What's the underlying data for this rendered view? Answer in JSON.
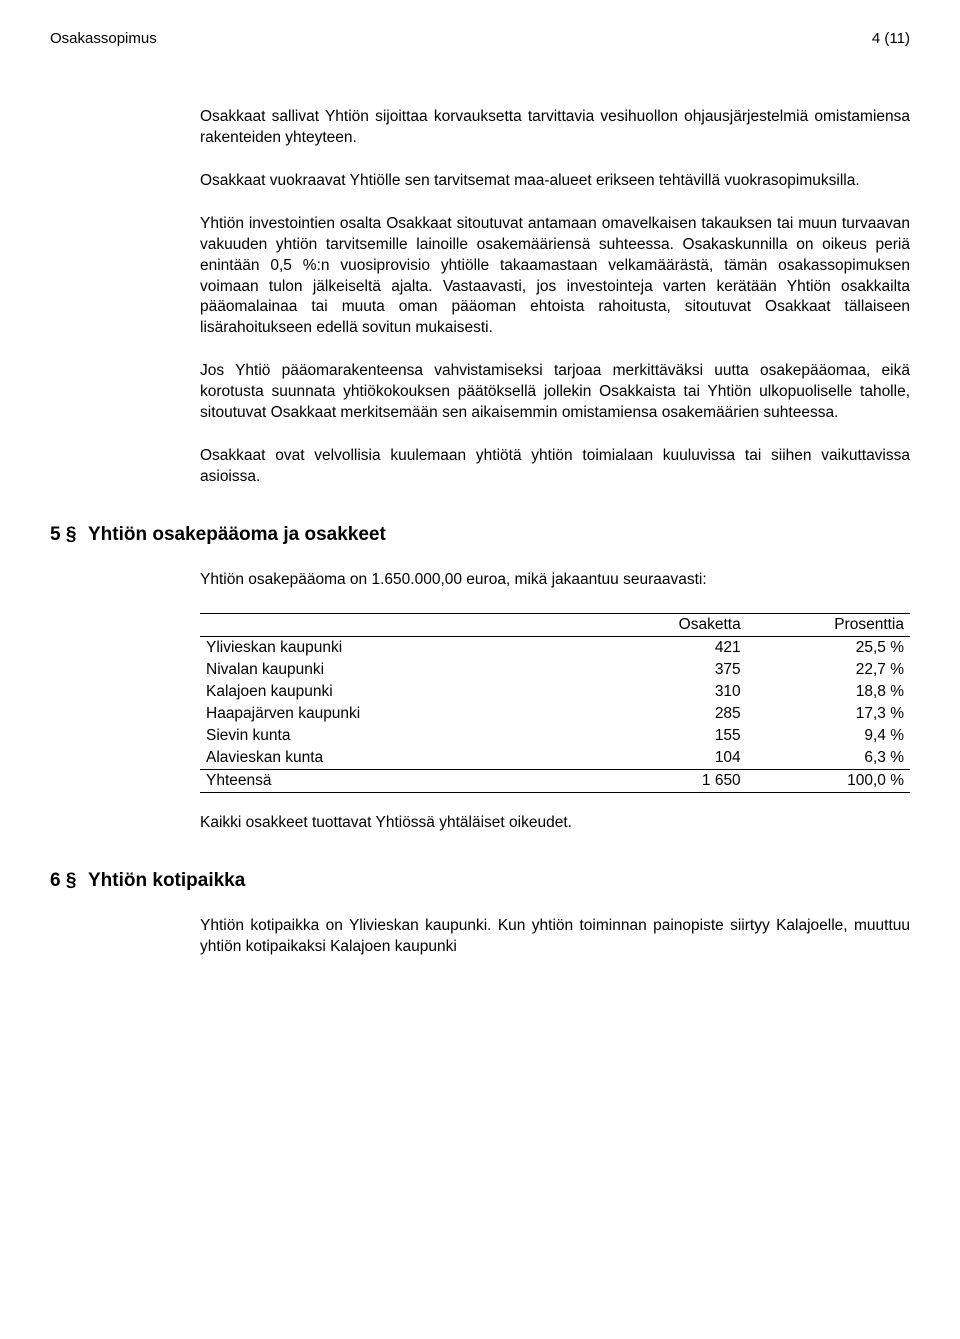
{
  "header": {
    "doc_title": "Osakassopimus",
    "page_num": "4 (11)"
  },
  "paras": {
    "p1": "Osakkaat sallivat Yhtiön sijoittaa korvauksetta tarvittavia vesihuollon ohjausjärjestelmiä omistamiensa rakenteiden yhteyteen.",
    "p2": "Osakkaat vuokraavat Yhtiölle sen tarvitsemat maa-alueet erikseen tehtävillä vuokrasopimuksilla.",
    "p3": "Yhtiön investointien osalta Osakkaat sitoutuvat antamaan omavelkaisen takauksen tai muun turvaavan vakuuden yhtiön tarvitsemille lainoille osakemääriensä suhteessa. Osakaskunnilla on oikeus periä enintään 0,5 %:n vuosiprovisio yhtiölle takaamastaan velkamäärästä, tämän osakassopimuksen voimaan tulon jälkeiseltä ajalta. Vastaavasti, jos investointeja varten kerätään Yhtiön osakkailta pääomalainaa tai muuta oman pääoman ehtoista rahoitusta, sitoutuvat Osakkaat tällaiseen lisärahoitukseen edellä sovitun mukaisesti.",
    "p4": "Jos Yhtiö pääomarakenteensa vahvistamiseksi tarjoaa merkittäväksi uutta osakepääomaa, eikä korotusta suunnata yhtiökokouksen päätöksellä jollekin Osakkaista tai Yhtiön ulkopuoliselle taholle, sitoutuvat Osakkaat merkitsemään sen aikaisemmin omistamiensa osakemäärien suhteessa.",
    "p5": "Osakkaat ovat velvollisia kuulemaan yhtiötä yhtiön toimialaan kuuluvissa tai siihen vaikuttavissa asioissa.",
    "s5_intro": "Yhtiön osakepääoma on 1.650.000,00 euroa, mikä jakaantuu seuraavasti:",
    "s5_after": "Kaikki osakkeet tuottavat Yhtiössä yhtäläiset oikeudet.",
    "s6_p1": "Yhtiön kotipaikka on Ylivieskan kaupunki. Kun yhtiön toiminnan painopiste siirtyy Kalajoelle, muuttuu yhtiön kotipaikaksi Kalajoen kaupunki"
  },
  "sections": {
    "s5": {
      "num": "5 §",
      "title": "Yhtiön osakepääoma ja osakkeet"
    },
    "s6": {
      "num": "6 §",
      "title": "Yhtiön kotipaikka"
    }
  },
  "table": {
    "head": {
      "c2": "Osaketta",
      "c3": "Prosenttia"
    },
    "rows": [
      {
        "name": "Ylivieskan kaupunki",
        "shares": "421",
        "pct": "25,5 %"
      },
      {
        "name": "Nivalan kaupunki",
        "shares": "375",
        "pct": "22,7 %"
      },
      {
        "name": "Kalajoen kaupunki",
        "shares": "310",
        "pct": "18,8 %"
      },
      {
        "name": "Haapajärven kaupunki",
        "shares": "285",
        "pct": "17,3 %"
      },
      {
        "name": "Sievin kunta",
        "shares": "155",
        "pct": "9,4 %"
      },
      {
        "name": "Alavieskan kunta",
        "shares": "104",
        "pct": "6,3 %"
      }
    ],
    "total": {
      "name": "Yhteensä",
      "shares": "1 650",
      "pct": "100,0 %"
    }
  }
}
